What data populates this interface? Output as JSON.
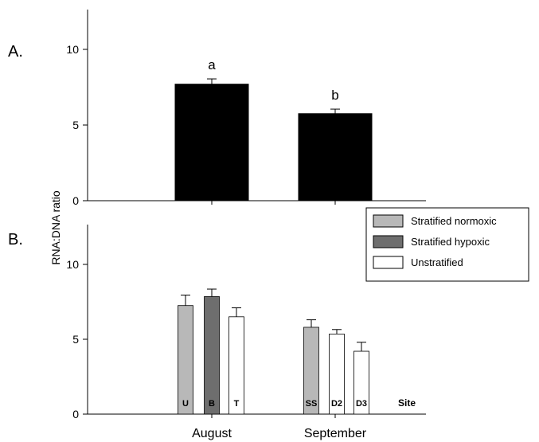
{
  "chart_data": [
    {
      "panel_label": "A.",
      "type": "bar",
      "categories": [
        "August",
        "September"
      ],
      "values": [
        7.7,
        5.75
      ],
      "errors": [
        0.35,
        0.3
      ],
      "letters": [
        "a",
        "b"
      ],
      "colors": [
        "#000000",
        "#000000"
      ],
      "ylim": [
        0,
        12.5
      ],
      "yticks": [
        0,
        5,
        10
      ],
      "grid": false
    },
    {
      "panel_label": "B.",
      "type": "bar",
      "ylabel": "RNA:DNA ratio",
      "xlabel": "Site",
      "x_groups": [
        "August",
        "September"
      ],
      "bars": [
        {
          "site": "U",
          "month": "August",
          "type": "Stratified normoxic",
          "value": 7.25,
          "error": 0.7
        },
        {
          "site": "B",
          "month": "August",
          "type": "Stratified hypoxic",
          "value": 7.85,
          "error": 0.5
        },
        {
          "site": "T",
          "month": "August",
          "type": "Unstratified",
          "value": 6.5,
          "error": 0.6
        },
        {
          "site": "SS",
          "month": "September",
          "type": "Stratified normoxic",
          "value": 5.8,
          "error": 0.5
        },
        {
          "site": "D2",
          "month": "September",
          "type": "Unstratified",
          "value": 5.35,
          "error": 0.3
        },
        {
          "site": "D3",
          "month": "September",
          "type": "Unstratified",
          "value": 4.2,
          "error": 0.6
        }
      ],
      "ylim": [
        0,
        12.5
      ],
      "yticks": [
        0,
        5,
        10
      ],
      "legend": {
        "position": "top-right",
        "items": [
          {
            "label": "Stratified normoxic",
            "color": "#b8b8b8"
          },
          {
            "label": "Stratified hypoxic",
            "color": "#6e6e6e"
          },
          {
            "label": "Unstratified",
            "color": "#ffffff"
          }
        ]
      },
      "grid": false
    }
  ]
}
